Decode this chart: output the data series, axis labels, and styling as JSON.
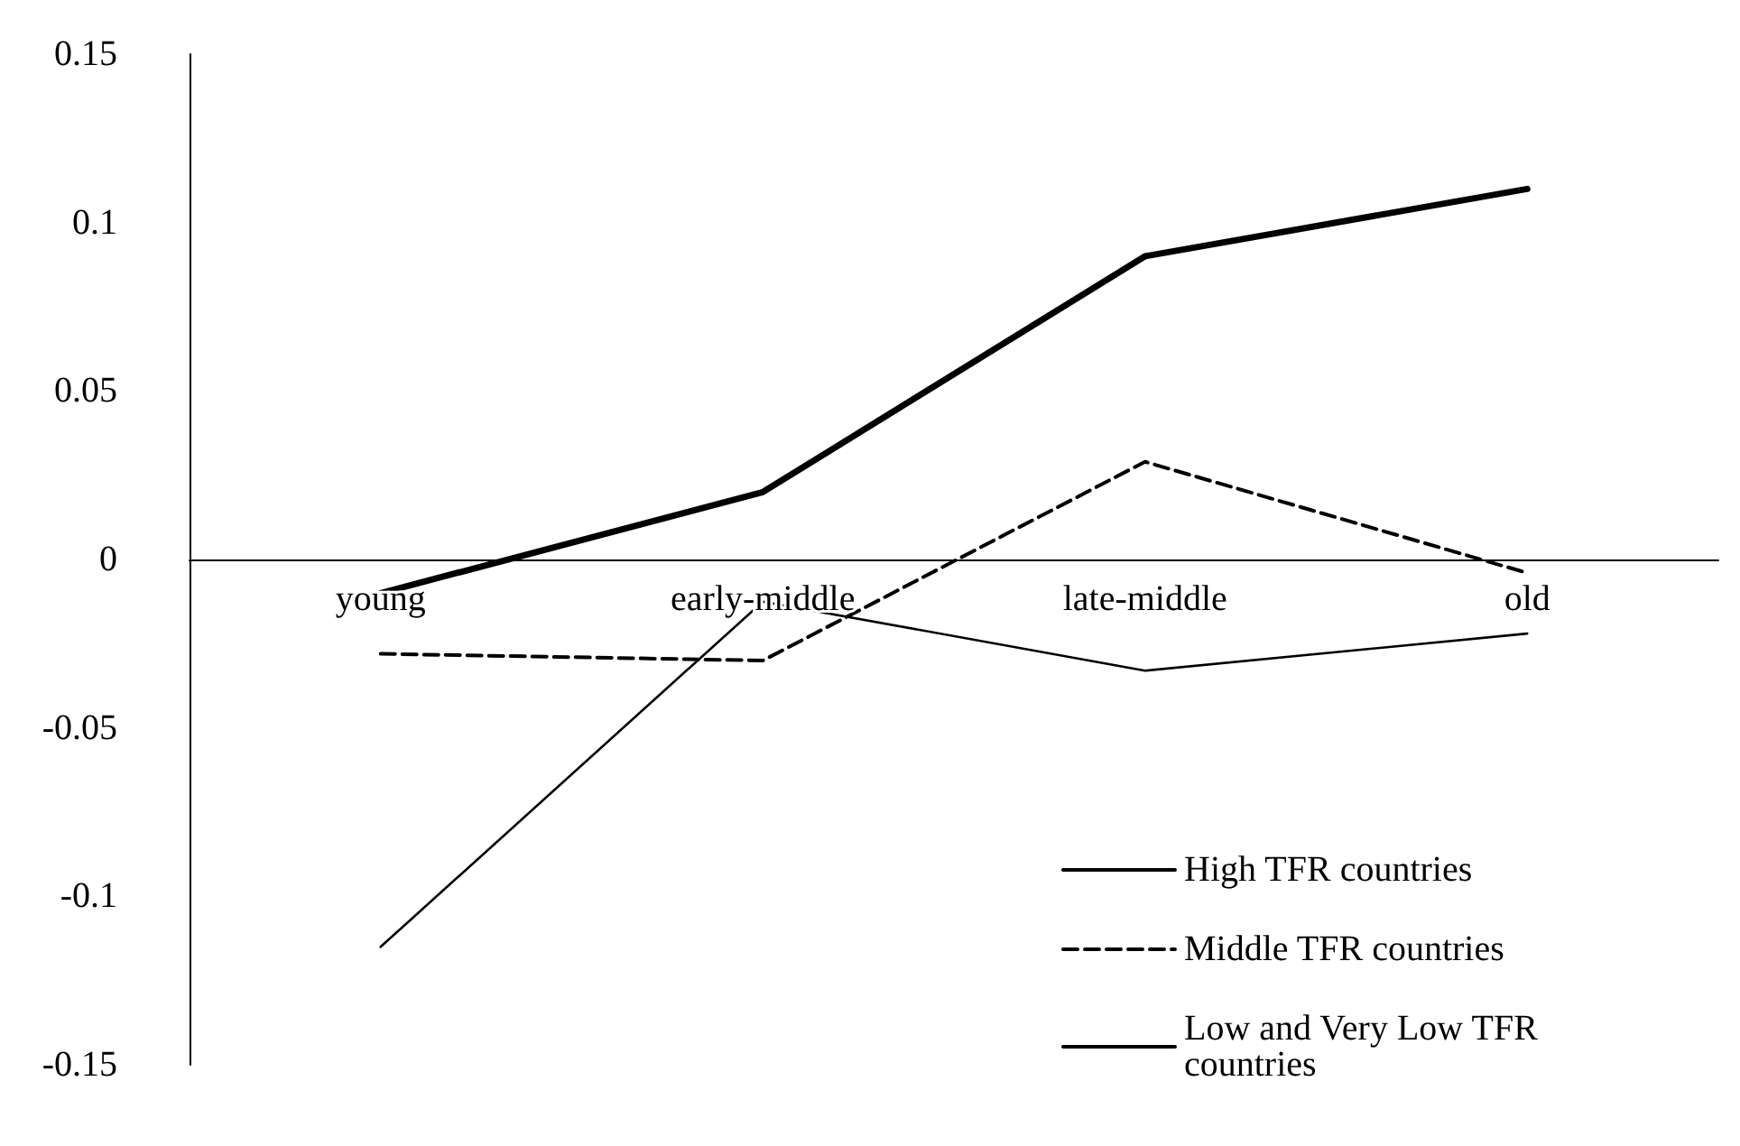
{
  "chart_data": {
    "type": "line",
    "categories": [
      "young",
      "early-middle",
      "late-middle",
      "old"
    ],
    "series": [
      {
        "name": "High TFR countries",
        "color": "#000000",
        "line_style": "solid",
        "values": [
          -0.01,
          0.02,
          0.09,
          0.11
        ]
      },
      {
        "name": "Middle TFR countries",
        "color": "#000000",
        "line_style": "dashed",
        "values": [
          -0.028,
          -0.03,
          0.029,
          -0.004
        ]
      },
      {
        "name": "Low and Very Low TFR countries",
        "color": "#000000",
        "line_style": "solid",
        "values": [
          -0.115,
          -0.0125,
          -0.033,
          -0.022
        ]
      }
    ],
    "ylim": [
      -0.15,
      0.15
    ],
    "yticks": [
      -0.15,
      -0.1,
      -0.05,
      0,
      0.05,
      0.1,
      0.15
    ],
    "grid": false,
    "legend": "bottom right"
  }
}
